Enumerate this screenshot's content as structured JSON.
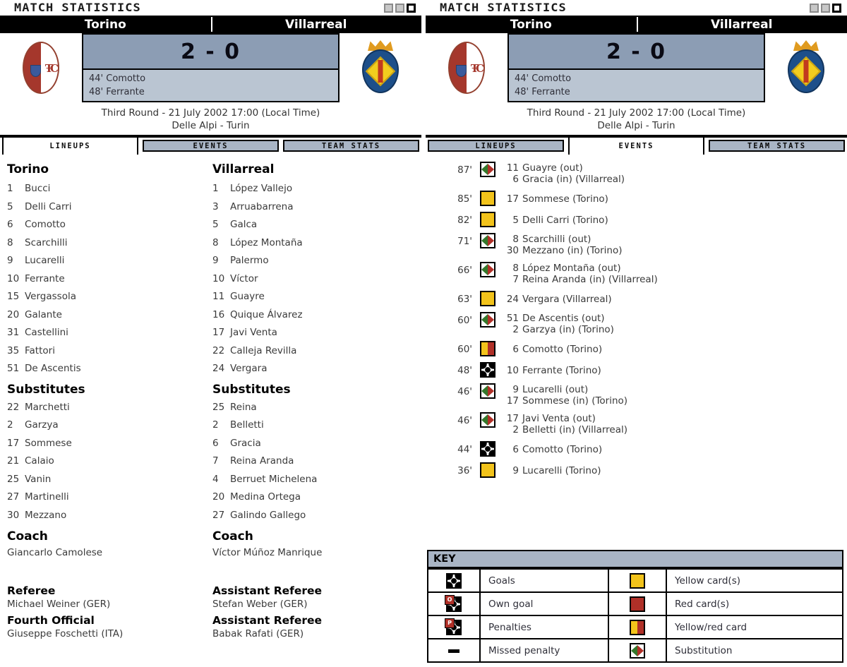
{
  "colors": {
    "score_bg": "#8c9db4",
    "scorers_bg": "#bac5d2",
    "tab_inactive_bg": "#a9b5c5",
    "yellow_card": "#f2c31b",
    "red_card": "#b03028",
    "sub_green": "#35782c",
    "team_bar_bg": "#000000"
  },
  "header": {
    "title": "MATCH STATISTICS",
    "home_team": "Torino",
    "away_team": "Villarreal",
    "score": "2 - 0",
    "scorers": [
      "44' Comotto",
      "48' Ferrante"
    ],
    "round_line": "Third Round - 21 July 2002 17:00 (Local Time)",
    "venue_line": "Delle Alpi - Turin"
  },
  "tabs": {
    "lineups": "LINEUPS",
    "events": "EVENTS",
    "team_stats": "TEAM STATS"
  },
  "lineups": {
    "torino": {
      "name": "Torino",
      "players": [
        {
          "num": "1",
          "name": "Bucci"
        },
        {
          "num": "5",
          "name": "Delli Carri"
        },
        {
          "num": "6",
          "name": "Comotto"
        },
        {
          "num": "8",
          "name": "Scarchilli"
        },
        {
          "num": "9",
          "name": "Lucarelli"
        },
        {
          "num": "10",
          "name": "Ferrante"
        },
        {
          "num": "15",
          "name": "Vergassola"
        },
        {
          "num": "20",
          "name": "Galante"
        },
        {
          "num": "31",
          "name": "Castellini"
        },
        {
          "num": "35",
          "name": "Fattori"
        },
        {
          "num": "51",
          "name": "De Ascentis"
        }
      ],
      "subs_label": "Substitutes",
      "subs": [
        {
          "num": "22",
          "name": "Marchetti"
        },
        {
          "num": "2",
          "name": "Garzya"
        },
        {
          "num": "17",
          "name": "Sommese"
        },
        {
          "num": "21",
          "name": "Calaio"
        },
        {
          "num": "25",
          "name": "Vanin"
        },
        {
          "num": "27",
          "name": "Martinelli"
        },
        {
          "num": "30",
          "name": "Mezzano"
        }
      ],
      "coach_label": "Coach",
      "coach": "Giancarlo Camolese"
    },
    "villarreal": {
      "name": "Villarreal",
      "players": [
        {
          "num": "1",
          "name": "López Vallejo"
        },
        {
          "num": "3",
          "name": "Arruabarrena"
        },
        {
          "num": "5",
          "name": "Galca"
        },
        {
          "num": "8",
          "name": "López Montaña"
        },
        {
          "num": "9",
          "name": "Palermo"
        },
        {
          "num": "10",
          "name": "Víctor"
        },
        {
          "num": "11",
          "name": "Guayre"
        },
        {
          "num": "16",
          "name": "Quique Álvarez"
        },
        {
          "num": "17",
          "name": "Javi Venta"
        },
        {
          "num": "22",
          "name": "Calleja Revilla"
        },
        {
          "num": "24",
          "name": "Vergara"
        }
      ],
      "subs_label": "Substitutes",
      "subs": [
        {
          "num": "25",
          "name": "Reina"
        },
        {
          "num": "2",
          "name": "Belletti"
        },
        {
          "num": "6",
          "name": "Gracia"
        },
        {
          "num": "7",
          "name": "Reina Aranda"
        },
        {
          "num": "4",
          "name": "Berruet Michelena"
        },
        {
          "num": "20",
          "name": "Medina Ortega"
        },
        {
          "num": "27",
          "name": "Galindo Gallego"
        }
      ],
      "coach_label": "Coach",
      "coach": "Víctor Múñoz Manrique"
    },
    "officials_left": [
      {
        "role": "Referee",
        "name": "Michael Weiner (GER)"
      },
      {
        "role": "Fourth Official",
        "name": "Giuseppe Foschetti (ITA)"
      }
    ],
    "officials_right": [
      {
        "role": "Assistant Referee",
        "name": "Stefan Weber (GER)"
      },
      {
        "role": "Assistant Referee",
        "name": "Babak Rafati (GER)"
      }
    ]
  },
  "events": {
    "items": [
      {
        "time": "87'",
        "icon": "sub",
        "lines": [
          {
            "num": "11",
            "text": "Guayre (out)"
          },
          {
            "num": "6",
            "text": "Gracia (in) (Villarreal)"
          }
        ]
      },
      {
        "time": "85'",
        "icon": "yellow",
        "lines": [
          {
            "num": "17",
            "text": "Sommese (Torino)"
          }
        ]
      },
      {
        "time": "82'",
        "icon": "yellow",
        "lines": [
          {
            "num": "5",
            "text": "Delli Carri (Torino)"
          }
        ]
      },
      {
        "time": "71'",
        "icon": "sub",
        "lines": [
          {
            "num": "8",
            "text": "Scarchilli (out)"
          },
          {
            "num": "30",
            "text": "Mezzano (in) (Torino)"
          }
        ]
      },
      {
        "time": "66'",
        "icon": "sub",
        "lines": [
          {
            "num": "8",
            "text": "López Montaña (out)"
          },
          {
            "num": "7",
            "text": "Reina Aranda (in) (Villarreal)"
          }
        ]
      },
      {
        "time": "63'",
        "icon": "yellow",
        "lines": [
          {
            "num": "24",
            "text": "Vergara (Villarreal)"
          }
        ]
      },
      {
        "time": "60'",
        "icon": "sub",
        "lines": [
          {
            "num": "51",
            "text": "De Ascentis (out)"
          },
          {
            "num": "2",
            "text": "Garzya (in) (Torino)"
          }
        ]
      },
      {
        "time": "60'",
        "icon": "yellowred",
        "lines": [
          {
            "num": "6",
            "text": "Comotto (Torino)"
          }
        ]
      },
      {
        "time": "48'",
        "icon": "goal",
        "lines": [
          {
            "num": "10",
            "text": "Ferrante (Torino)"
          }
        ]
      },
      {
        "time": "46'",
        "icon": "sub",
        "lines": [
          {
            "num": "9",
            "text": "Lucarelli (out)"
          },
          {
            "num": "17",
            "text": "Sommese (in) (Torino)"
          }
        ]
      },
      {
        "time": "46'",
        "icon": "sub",
        "lines": [
          {
            "num": "17",
            "text": "Javi Venta (out)"
          },
          {
            "num": "2",
            "text": "Belletti (in) (Villarreal)"
          }
        ]
      },
      {
        "time": "44'",
        "icon": "goal",
        "lines": [
          {
            "num": "6",
            "text": "Comotto (Torino)"
          }
        ]
      },
      {
        "time": "36'",
        "icon": "yellow",
        "lines": [
          {
            "num": "9",
            "text": "Lucarelli (Torino)"
          }
        ]
      }
    ]
  },
  "key": {
    "title": "KEY",
    "rows": [
      {
        "icon1": "goal",
        "label1": "Goals",
        "icon2": "yellow",
        "label2": "Yellow card(s)"
      },
      {
        "icon1": "owngoal",
        "label1": "Own goal",
        "icon2": "red",
        "label2": "Red card(s)"
      },
      {
        "icon1": "penalty",
        "label1": "Penalties",
        "icon2": "yellowred",
        "label2": "Yellow/red card"
      },
      {
        "icon1": "missed",
        "label1": "Missed penalty",
        "icon2": "sub",
        "label2": "Substitution"
      }
    ]
  }
}
